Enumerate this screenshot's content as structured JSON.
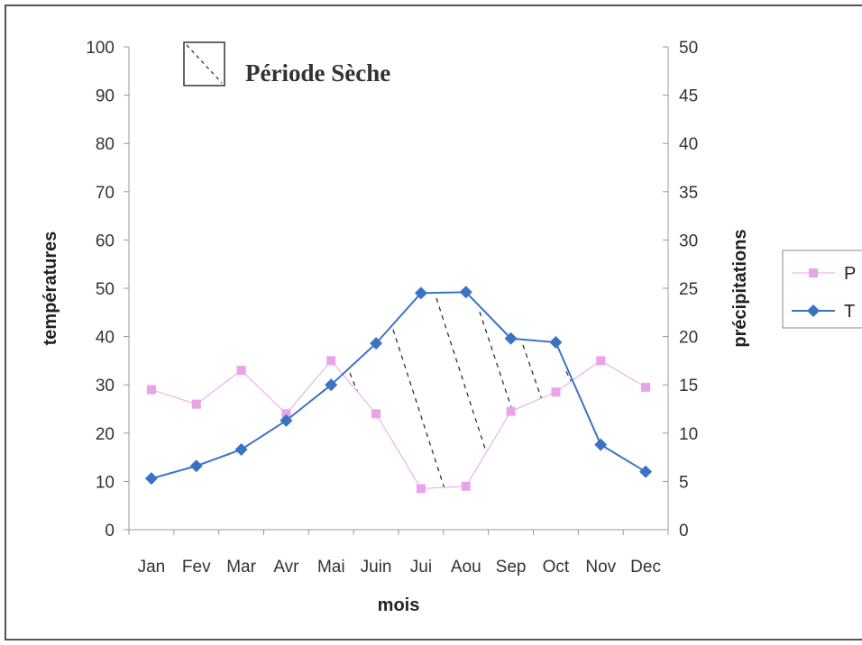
{
  "chart_data": {
    "type": "line",
    "categories": [
      "Jan",
      "Fev",
      "Mar",
      "Avr",
      "Mai",
      "Juin",
      "Jui",
      "Aou",
      "Sep",
      "Oct",
      "Nov",
      "Dec"
    ],
    "xlabel": "mois",
    "ylabel_left": "températures",
    "ylabel_right": "précipitations",
    "ylim_left": [
      0,
      100
    ],
    "ylim_right": [
      0,
      50
    ],
    "yticks_left": [
      "0",
      "10",
      "20",
      "30",
      "40",
      "50",
      "60",
      "70",
      "80",
      "90",
      "100"
    ],
    "yticks_right": [
      "0",
      "5",
      "10",
      "15",
      "20",
      "25",
      "30",
      "35",
      "40",
      "45",
      "50"
    ],
    "grid": false,
    "legend_position": "right",
    "dry_period_label": "Période Sèche",
    "series": [
      {
        "name": "P",
        "axis": "left",
        "color": "#e9a3e9",
        "marker": "square",
        "values": [
          29,
          26,
          33,
          24,
          35,
          24,
          8.5,
          9,
          24.5,
          28.5,
          35,
          29.5
        ]
      },
      {
        "name": "T",
        "axis": "right",
        "color": "#3b73c4",
        "marker": "diamond",
        "values": [
          5.3,
          6.6,
          8.3,
          11.3,
          15,
          19.3,
          24.5,
          24.6,
          19.8,
          19.4,
          8.8,
          6
        ]
      }
    ]
  }
}
